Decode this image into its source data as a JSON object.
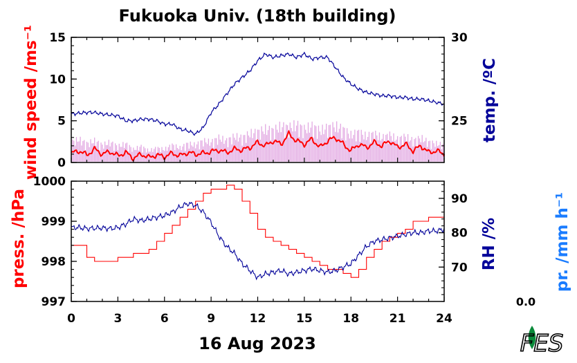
{
  "title": "Fukuoka Univ. (18th building)",
  "date_label": "16 Aug 2023",
  "precip_value": "0.0",
  "logo_alt": "FES",
  "colors": {
    "wind_gust": "#dd99dd",
    "wind_mean": "#ff0000",
    "temperature": "#000099",
    "pressure": "#ff0000",
    "rh": "#000099",
    "precip": "#1a7cff",
    "axis": "#000000",
    "logo_leaf": "#0a8a3a"
  },
  "chart_data": [
    {
      "type": "line",
      "panel": "top",
      "title": "",
      "xlabel": "",
      "xlim": [
        0,
        24
      ],
      "x_ticks": [
        "0",
        "3",
        "6",
        "9",
        "12",
        "15",
        "18",
        "21",
        "24"
      ],
      "y_left": {
        "label": "wind speed /ms⁻¹",
        "lim": [
          0,
          15
        ],
        "ticks": [
          "0",
          "5",
          "10",
          "15"
        ]
      },
      "y_right": {
        "label": "temp. /ºC",
        "lim": [
          22.5,
          30
        ],
        "ticks": [
          "25",
          "30"
        ]
      },
      "grid": false,
      "series": [
        {
          "axis": "left",
          "style": "gust",
          "x": [
            0,
            0.5,
            1,
            1.5,
            2,
            2.5,
            3,
            3.5,
            4,
            4.5,
            5,
            5.5,
            6,
            6.5,
            7,
            7.5,
            8,
            8.5,
            9,
            9.5,
            10,
            10.5,
            11,
            11.5,
            12,
            12.5,
            13,
            13.5,
            14,
            14.5,
            15,
            15.5,
            16,
            16.5,
            17,
            17.5,
            18,
            18.5,
            19,
            19.5,
            20,
            20.5,
            21,
            21.5,
            22,
            22.5,
            23,
            23.5,
            24
          ],
          "y": [
            2.8,
            3.2,
            2.6,
            3.0,
            2.4,
            2.8,
            2.2,
            2.6,
            1.8,
            2.2,
            1.6,
            2.0,
            1.8,
            2.4,
            2.0,
            2.6,
            2.4,
            3.0,
            2.8,
            3.4,
            3.0,
            3.6,
            3.4,
            4.0,
            4.2,
            4.6,
            4.4,
            5.0,
            4.8,
            5.2,
            4.6,
            5.0,
            4.4,
            4.8,
            5.0,
            4.6,
            3.8,
            4.2,
            3.6,
            4.0,
            3.4,
            3.8,
            3.2,
            3.6,
            3.0,
            3.4,
            2.8,
            2.6,
            2.4
          ]
        },
        {
          "axis": "left",
          "style": "mean",
          "x": [
            0,
            0.5,
            1,
            1.5,
            2,
            2.5,
            3,
            3.5,
            4,
            4.5,
            5,
            5.5,
            6,
            6.5,
            7,
            7.5,
            8,
            8.5,
            9,
            9.5,
            10,
            10.5,
            11,
            11.5,
            12,
            12.5,
            13,
            13.5,
            14,
            14.5,
            15,
            15.5,
            16,
            16.5,
            17,
            17.5,
            18,
            18.5,
            19,
            19.5,
            20,
            20.5,
            21,
            21.5,
            22,
            22.5,
            23,
            23.5,
            24
          ],
          "y": [
            1.1,
            1.4,
            0.9,
            1.6,
            1.0,
            1.3,
            0.8,
            1.2,
            0.5,
            1.0,
            0.6,
            0.9,
            0.7,
            1.1,
            0.8,
            1.2,
            1.0,
            1.1,
            1.3,
            1.5,
            1.2,
            1.6,
            1.5,
            1.8,
            2.4,
            2.0,
            2.6,
            2.2,
            3.4,
            2.6,
            2.2,
            2.8,
            1.8,
            2.6,
            3.0,
            2.2,
            1.4,
            2.2,
            1.8,
            2.4,
            2.0,
            2.6,
            1.8,
            2.2,
            1.4,
            2.0,
            1.2,
            1.4,
            1.0
          ]
        },
        {
          "axis": "right",
          "style": "temp",
          "x": [
            0,
            1,
            1.5,
            2,
            3,
            3.5,
            4,
            4.5,
            5,
            5.5,
            6,
            6.5,
            7,
            7.5,
            8,
            8.5,
            9,
            9.5,
            10,
            10.5,
            11,
            11.5,
            12,
            12.5,
            13,
            13.5,
            14,
            14.5,
            15,
            15.5,
            16,
            16.5,
            17,
            17.5,
            18,
            18.5,
            19,
            19.5,
            20,
            20.5,
            21,
            21.5,
            22,
            22.5,
            23,
            23.5,
            24
          ],
          "y": [
            25.4,
            25.5,
            25.5,
            25.4,
            25.3,
            25.0,
            25.0,
            25.1,
            25.1,
            25.0,
            24.8,
            24.8,
            24.5,
            24.4,
            24.2,
            24.6,
            25.5,
            26.0,
            26.6,
            27.2,
            27.6,
            28.0,
            28.6,
            29.0,
            28.8,
            28.9,
            29.0,
            28.8,
            29.0,
            28.7,
            28.8,
            28.8,
            28.2,
            27.6,
            27.2,
            26.9,
            26.7,
            26.6,
            26.5,
            26.5,
            26.4,
            26.4,
            26.3,
            26.3,
            26.2,
            26.1,
            26.0
          ]
        }
      ]
    },
    {
      "type": "line",
      "panel": "bottom",
      "title": "",
      "xlabel": "16 Aug 2023",
      "xlim": [
        0,
        24
      ],
      "x_ticks": [
        "0",
        "3",
        "6",
        "9",
        "12",
        "15",
        "18",
        "21",
        "24"
      ],
      "y_left": {
        "label": "press. /hPa",
        "lim": [
          997,
          1000
        ],
        "ticks": [
          "997",
          "998",
          "999",
          "1000"
        ]
      },
      "y_right": {
        "label": "RH /%",
        "lim": [
          60,
          95
        ],
        "ticks": [
          "70",
          "80",
          "90"
        ]
      },
      "y_right2": {
        "label": "pr. /mm h⁻¹",
        "value": "0.0"
      },
      "grid": false,
      "series": [
        {
          "axis": "left",
          "style": "pressure",
          "x": [
            0,
            0.5,
            1,
            1.5,
            2,
            2.5,
            3,
            3.5,
            4,
            4.5,
            5,
            5.5,
            6,
            6.5,
            7,
            7.5,
            8,
            8.5,
            9,
            9.5,
            10,
            10.5,
            11,
            11.5,
            12,
            12.5,
            13,
            13.5,
            14,
            14.5,
            15,
            15.5,
            16,
            16.5,
            17,
            17.5,
            18,
            18.5,
            19,
            19.5,
            20,
            20.5,
            21,
            21.5,
            22,
            22.5,
            23,
            23.5,
            24
          ],
          "y": [
            998.4,
            998.4,
            998.1,
            998.0,
            998.0,
            998.0,
            998.1,
            998.1,
            998.2,
            998.2,
            998.3,
            998.5,
            998.7,
            998.9,
            999.1,
            999.3,
            999.5,
            999.7,
            999.8,
            999.8,
            999.9,
            999.8,
            999.5,
            999.2,
            998.8,
            998.6,
            998.5,
            998.4,
            998.3,
            998.2,
            998.1,
            998.0,
            997.9,
            997.8,
            997.8,
            997.7,
            997.6,
            997.8,
            998.1,
            998.3,
            998.5,
            998.6,
            998.7,
            998.8,
            999.0,
            999.0,
            999.1,
            999.1,
            998.9
          ]
        },
        {
          "axis": "right",
          "style": "rh",
          "x": [
            0,
            0.5,
            1,
            1.5,
            2,
            2.5,
            3,
            3.5,
            4,
            4.5,
            5,
            5.5,
            6,
            6.5,
            7,
            7.5,
            8,
            8.5,
            9,
            9.5,
            10,
            10.5,
            11,
            11.5,
            12,
            12.5,
            13,
            13.5,
            14,
            14.5,
            15,
            15.5,
            16,
            16.5,
            17,
            17.5,
            18,
            18.5,
            19,
            19.5,
            20,
            20.5,
            21,
            21.5,
            22,
            22.5,
            23,
            23.5,
            24
          ],
          "y": [
            81.5,
            81.5,
            81.2,
            81.3,
            81.4,
            81.2,
            81.5,
            82.5,
            84.0,
            83.5,
            84.0,
            84.5,
            85.0,
            86.0,
            87.5,
            88.5,
            88.0,
            86.0,
            83.0,
            79.0,
            76.0,
            74.0,
            71.0,
            69.0,
            67.0,
            68.0,
            68.5,
            69.0,
            68.0,
            68.5,
            69.0,
            69.5,
            69.0,
            68.5,
            69.0,
            70.0,
            71.0,
            73.5,
            76.0,
            77.5,
            78.0,
            78.5,
            79.0,
            79.5,
            80.0,
            80.0,
            80.5,
            80.5,
            81.0
          ]
        }
      ]
    }
  ]
}
